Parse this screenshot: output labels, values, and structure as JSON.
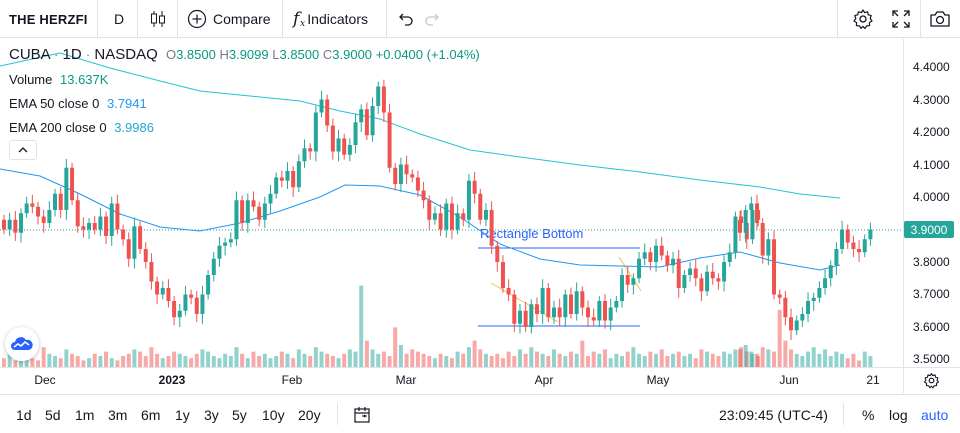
{
  "toolbar": {
    "symbol": "THE HERZFI",
    "interval": "D",
    "compare_label": "Compare",
    "indicators_label": "Indicators"
  },
  "legend": {
    "ticker": "CUBA",
    "dot1": "·",
    "timeframe": "1D",
    "dot2": "·",
    "exchange": "NASDAQ",
    "o_label": "O",
    "o_value": "3.8500",
    "h_label": "H",
    "h_value": "3.9099",
    "l_label": "L",
    "l_value": "3.8500",
    "c_label": "C",
    "c_value": "3.9000",
    "change": "+0.0400 (+1.04%)",
    "volume_label": "Volume",
    "volume_value": "13.637K",
    "ema50_label": "EMA 50 close 0",
    "ema50_value": "3.7941",
    "ema200_label": "EMA 200 close 0",
    "ema200_value": "3.9986"
  },
  "drawing": {
    "rectangle_label": "Rectangle Bottom"
  },
  "price_axis": {
    "ticks": [
      "4.4000",
      "4.3000",
      "4.2000",
      "4.1000",
      "4.0000",
      "3.9000",
      "3.8000",
      "3.7000",
      "3.6000",
      "3.5000"
    ],
    "last_price": "3.9000"
  },
  "time_axis": {
    "labels": [
      "Dec",
      "2023",
      "Feb",
      "Mar",
      "Apr",
      "May",
      "Jun",
      "21"
    ]
  },
  "bottom": {
    "ranges": [
      "1d",
      "5d",
      "1m",
      "3m",
      "6m",
      "1y",
      "3y",
      "5y",
      "10y",
      "20y"
    ],
    "time": "23:09:45 (UTC-4)",
    "percent": "%",
    "log": "log",
    "auto": "auto"
  },
  "colors": {
    "up": "#26a69a",
    "down": "#ef5350",
    "ema50": "#2196f3",
    "ema200": "#22c3d6",
    "accent": "#2962ff"
  }
}
